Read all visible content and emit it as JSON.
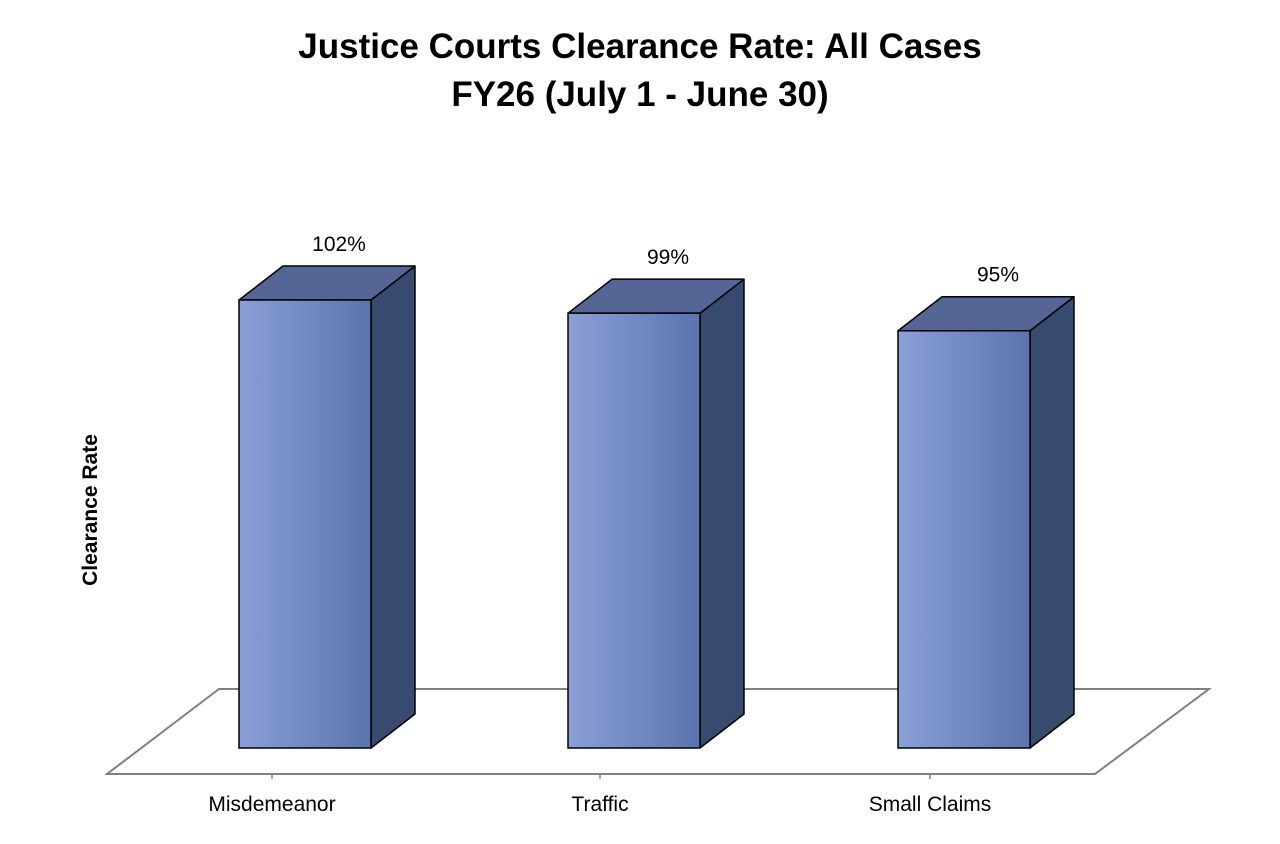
{
  "chart_data": {
    "type": "bar",
    "title": "Justice Courts Clearance Rate: All Cases",
    "subtitle": "FY26 (July 1 - June 30)",
    "xlabel": "",
    "ylabel": "Clearance Rate",
    "categories": [
      "Misdemeanor",
      "Traffic",
      "Small Claims"
    ],
    "values": [
      102,
      99,
      95
    ],
    "data_labels": [
      "102%",
      "99%",
      "95%"
    ],
    "ylim": [
      0,
      102
    ],
    "grid": false,
    "legend": "none",
    "style": "3d-column",
    "colors": {
      "bar_front_light": "#8b9fd8",
      "bar_front_dark": "#5a74b0",
      "bar_top": "#556696",
      "bar_side": "#384b6e",
      "outline": "#000000",
      "floor_line": "#808080"
    }
  }
}
